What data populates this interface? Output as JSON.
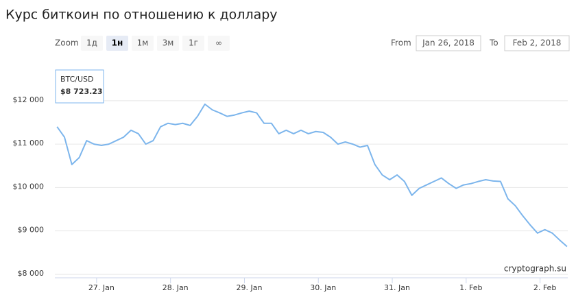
{
  "chart_data": {
    "type": "line",
    "title": "Курс биткоин по отношению к доллару",
    "zoom": {
      "label": "Zoom",
      "buttons": [
        "1д",
        "1н",
        "1м",
        "3м",
        "1г",
        "∞"
      ],
      "selected": 1
    },
    "range": {
      "from_label": "From",
      "from": "Jan 26, 2018",
      "to_label": "To",
      "to": "Feb 2, 2018"
    },
    "tooltip": {
      "name": "BTC/USD",
      "value": "$8 723.23"
    },
    "credits": "cryptograph.su",
    "series": [
      {
        "name": "BTC/USD",
        "color": "#7cb5ec",
        "x": [
          26.4,
          26.5,
          26.6,
          26.7,
          26.8,
          26.9,
          27.0,
          27.1,
          27.2,
          27.3,
          27.4,
          27.5,
          27.6,
          27.7,
          27.8,
          27.9,
          28.0,
          28.1,
          28.2,
          28.3,
          28.4,
          28.5,
          28.6,
          28.7,
          28.8,
          28.9,
          29.0,
          29.1,
          29.2,
          29.3,
          29.4,
          29.5,
          29.6,
          29.7,
          29.8,
          29.9,
          30.0,
          30.1,
          30.2,
          30.3,
          30.4,
          30.5,
          30.6,
          30.7,
          30.8,
          30.9,
          31.0,
          31.1,
          31.2,
          31.3,
          31.4,
          31.5,
          31.6,
          31.7,
          31.8,
          31.9,
          32.0,
          32.1,
          32.2,
          32.3,
          32.4,
          32.5,
          32.6,
          32.7,
          32.8,
          32.9,
          33.0,
          33.1,
          33.2,
          33.3
        ],
        "values": [
          11400,
          11160,
          10530,
          10690,
          11080,
          11000,
          10970,
          11000,
          11080,
          11160,
          11320,
          11240,
          11000,
          11080,
          11400,
          11480,
          11450,
          11480,
          11430,
          11640,
          11920,
          11790,
          11720,
          11640,
          11670,
          11720,
          11760,
          11720,
          11480,
          11480,
          11240,
          11320,
          11240,
          11320,
          11240,
          11290,
          11270,
          11160,
          11000,
          11050,
          11000,
          10930,
          10970,
          10530,
          10290,
          10180,
          10290,
          10140,
          9820,
          9980,
          10060,
          10140,
          10220,
          10090,
          9980,
          10060,
          10090,
          10140,
          10180,
          10150,
          10140,
          9740,
          9580,
          9350,
          9140,
          8950,
          9030,
          8950,
          8790,
          8640
        ]
      }
    ],
    "xlim": [
      26.37,
      33.31
    ],
    "xticks": [
      {
        "value": 27,
        "label": "27. Jan"
      },
      {
        "value": 28,
        "label": "28. Jan"
      },
      {
        "value": 29,
        "label": "29. Jan"
      },
      {
        "value": 30,
        "label": "30. Jan"
      },
      {
        "value": 31,
        "label": "31. Jan"
      },
      {
        "value": 32,
        "label": "1. Feb"
      },
      {
        "value": 33,
        "label": "2. Feb"
      }
    ],
    "ylim": [
      7920,
      12740
    ],
    "yticks": [
      {
        "value": 8000,
        "label": "$8 000"
      },
      {
        "value": 9000,
        "label": "$9 000"
      },
      {
        "value": 10000,
        "label": "$10 000"
      },
      {
        "value": 11000,
        "label": "$11 000"
      },
      {
        "value": 12000,
        "label": "$12 000"
      }
    ],
    "grid": true
  }
}
